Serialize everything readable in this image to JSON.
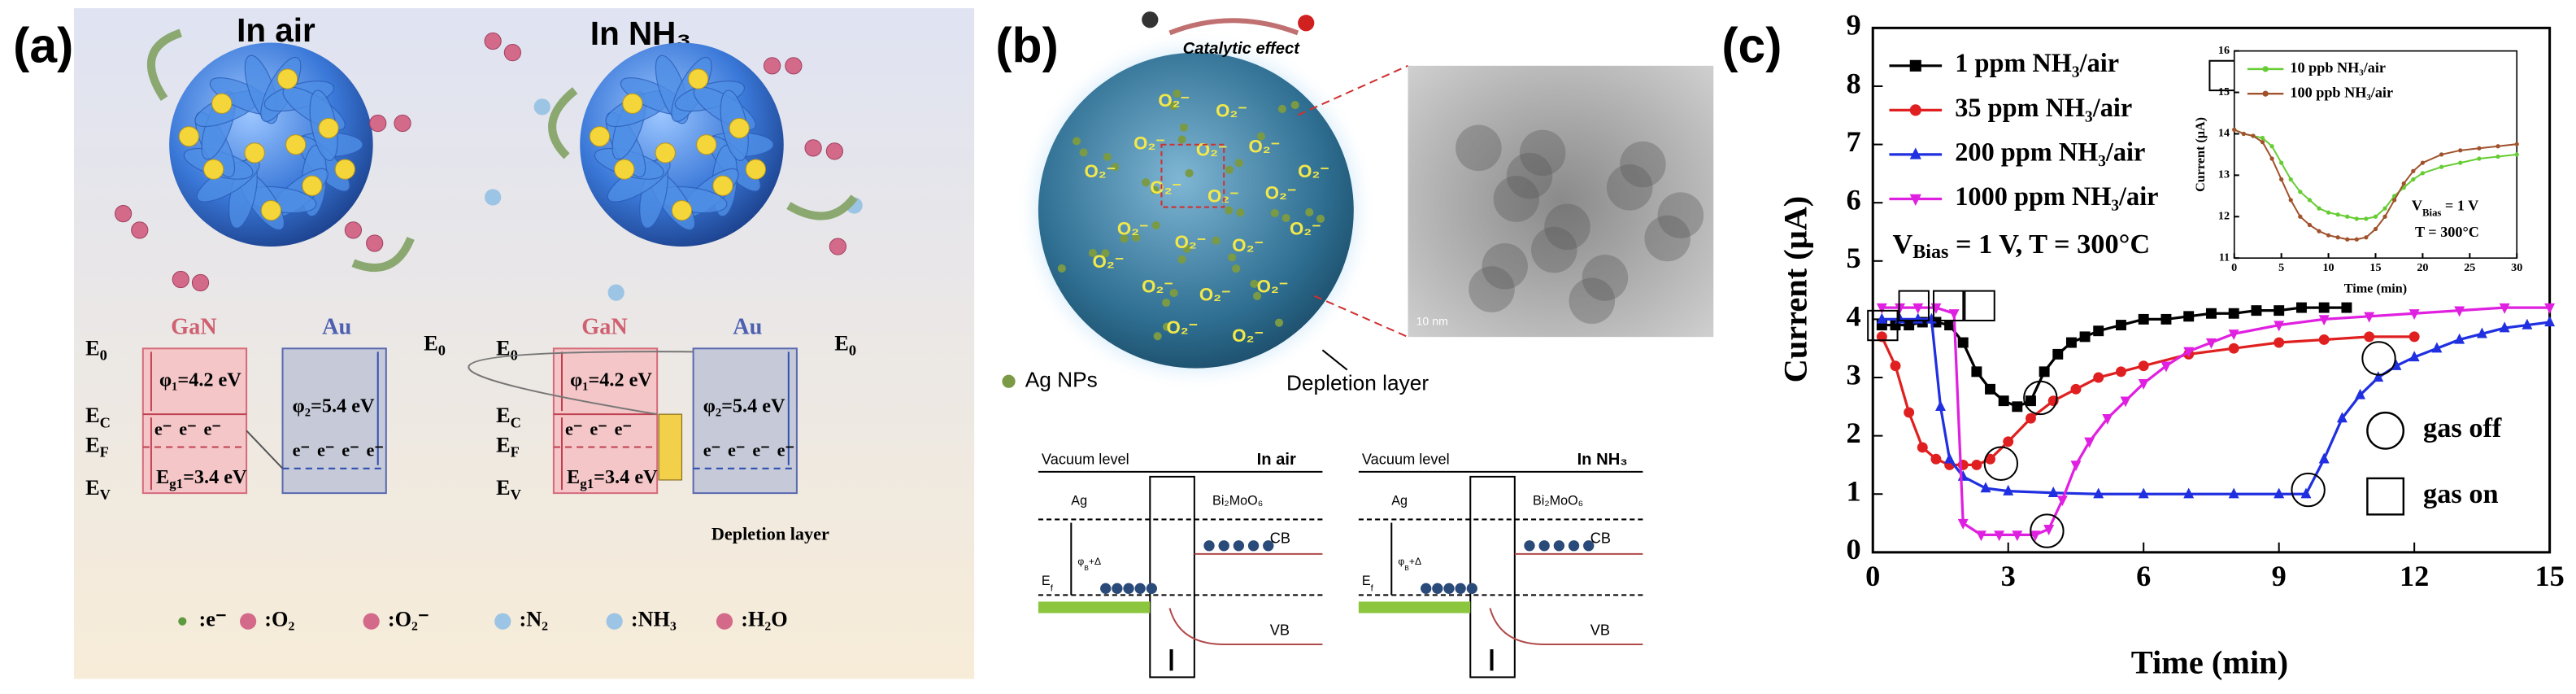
{
  "panel_a": {
    "label": "(a)",
    "left_title": "In air",
    "right_title": "In NH₃",
    "gan": "GaN",
    "au": "Au",
    "e0": {
      "main": "E",
      "sub": "0"
    },
    "ec": {
      "main": "E",
      "sub": "C"
    },
    "ef": {
      "main": "E",
      "sub": "F"
    },
    "ev": {
      "main": "E",
      "sub": "V"
    },
    "phi1": "φ₁=4.2 eV",
    "phi2": "φ₂=5.4 eV",
    "eg": {
      "main": "E",
      "sub": "g1",
      "rest": "=3.4 eV"
    },
    "electron": "e⁻",
    "depletion": "Depletion layer",
    "legend": [
      ":e⁻",
      ":O₂",
      ":O₂⁻",
      ":N₂",
      ":NH₃",
      ":H₂O"
    ]
  },
  "panel_b": {
    "label": "(b)",
    "catalytic": "Catalytic effect",
    "o2": "O₂⁻",
    "scale": "10 nm",
    "ag_nps": "Ag NPs",
    "depletion": "Depletion layer",
    "vacuum": "Vacuum level",
    "left_title": "In air",
    "right_title": "In NH₃",
    "ag": "Ag",
    "bmo": "Bi₂MoO₆",
    "cb": "CB",
    "vb": "VB",
    "ef": {
      "main": "E",
      "sub": "f"
    },
    "barrier": {
      "main": "φ",
      "sub": "B",
      "rest": "+Δ"
    }
  },
  "panel_c": {
    "label": "(c)",
    "gas_off": "gas off",
    "gas_on": "gas on"
  },
  "chart_data": [
    {
      "type": "line",
      "x_label": "Time (min)",
      "y_label": "Current (μA)",
      "annotation": {
        "main": "V",
        "sub": "Bias",
        "rest": " = 1 V,  T = 300°C"
      },
      "xlim": [
        0,
        15
      ],
      "ylim": [
        0,
        9
      ],
      "xticks": [
        0,
        3,
        6,
        9,
        12,
        15
      ],
      "yticks": [
        0,
        1,
        2,
        3,
        4,
        5,
        6,
        7,
        8,
        9
      ],
      "series": [
        {
          "name": "1 ppm NH₃/air",
          "color": "#000000",
          "marker": "square",
          "x": [
            0.2,
            0.5,
            0.8,
            1.1,
            1.4,
            1.7,
            2.0,
            2.3,
            2.6,
            2.9,
            3.2,
            3.5,
            3.8,
            4.1,
            4.4,
            4.7,
            5.0,
            5.5,
            6.0,
            6.5,
            7.0,
            7.5,
            8.0,
            8.5,
            9.0,
            9.5,
            10.0,
            10.5
          ],
          "values": [
            3.9,
            3.9,
            3.9,
            3.95,
            3.95,
            3.9,
            3.6,
            3.1,
            2.8,
            2.6,
            2.5,
            2.6,
            3.1,
            3.4,
            3.6,
            3.7,
            3.8,
            3.9,
            4.0,
            4.0,
            4.05,
            4.1,
            4.1,
            4.15,
            4.15,
            4.2,
            4.2,
            4.2
          ]
        },
        {
          "name": "35 ppm NH₃/air",
          "color": "#e02020",
          "marker": "circle",
          "x": [
            0.2,
            0.5,
            0.8,
            1.1,
            1.4,
            1.7,
            2.0,
            2.3,
            2.6,
            3.0,
            3.5,
            4.0,
            4.5,
            5.0,
            5.5,
            6.0,
            7.0,
            8.0,
            9.0,
            10.0,
            11.0,
            12.0
          ],
          "values": [
            3.7,
            3.2,
            2.4,
            1.8,
            1.6,
            1.5,
            1.5,
            1.5,
            1.6,
            1.9,
            2.3,
            2.6,
            2.8,
            3.0,
            3.1,
            3.2,
            3.4,
            3.5,
            3.6,
            3.65,
            3.7,
            3.7
          ]
        },
        {
          "name": "200 ppm NH₃/air",
          "color": "#2030e0",
          "marker": "triangle-up",
          "x": [
            0.2,
            0.6,
            1.0,
            1.3,
            1.5,
            1.7,
            2.0,
            2.5,
            3.0,
            4,
            5,
            6,
            7,
            8,
            9,
            9.6,
            10.0,
            10.4,
            10.8,
            11.2,
            11.6,
            12,
            12.5,
            13,
            13.5,
            14,
            14.5,
            15
          ],
          "values": [
            4.0,
            4.0,
            4.0,
            4.0,
            2.5,
            1.6,
            1.3,
            1.1,
            1.05,
            1.02,
            1.0,
            1.0,
            1.0,
            1.0,
            1.0,
            1.0,
            1.6,
            2.3,
            2.7,
            3.0,
            3.2,
            3.35,
            3.5,
            3.65,
            3.75,
            3.85,
            3.9,
            3.95
          ]
        },
        {
          "name": "1000 ppm NH₃/air",
          "color": "#e020e0",
          "marker": "triangle-down",
          "x": [
            0.2,
            0.6,
            1.0,
            1.4,
            1.8,
            2.0,
            2.4,
            2.8,
            3.2,
            3.6,
            3.9,
            4.2,
            4.5,
            4.8,
            5.2,
            5.6,
            6.0,
            6.5,
            7,
            7.5,
            8,
            9,
            10,
            11,
            12,
            13,
            14,
            15
          ],
          "values": [
            4.2,
            4.2,
            4.2,
            4.2,
            4.1,
            0.5,
            0.3,
            0.3,
            0.3,
            0.3,
            0.4,
            0.9,
            1.5,
            1.9,
            2.3,
            2.6,
            2.9,
            3.2,
            3.45,
            3.6,
            3.75,
            3.9,
            4.0,
            4.05,
            4.1,
            4.15,
            4.2,
            4.2
          ]
        }
      ]
    },
    {
      "type": "line",
      "x_label": "Time (min)",
      "y_label": "Current (μA)",
      "annotation": {
        "main": "V",
        "sub": "Bias",
        "rest": " = 1 V"
      },
      "annotation2": "T = 300°C",
      "xlim": [
        0,
        30
      ],
      "ylim": [
        11,
        16
      ],
      "xticks": [
        0,
        5,
        10,
        15,
        20,
        25,
        30
      ],
      "yticks": [
        11,
        12,
        13,
        14,
        15,
        16
      ],
      "series": [
        {
          "name": "10 ppb NH₃/air",
          "color": "#66cc33",
          "marker": "circle",
          "x": [
            0,
            1,
            2,
            3,
            4,
            5,
            6,
            7,
            8,
            9,
            10,
            11,
            12,
            13,
            14,
            15,
            16,
            17,
            18,
            19,
            20,
            22,
            24,
            26,
            28,
            30
          ],
          "values": [
            14.1,
            14.0,
            13.95,
            13.9,
            13.7,
            13.3,
            12.9,
            12.6,
            12.4,
            12.2,
            12.1,
            12.05,
            12.0,
            11.95,
            11.95,
            12.0,
            12.2,
            12.5,
            12.7,
            12.9,
            13.05,
            13.2,
            13.3,
            13.4,
            13.45,
            13.5
          ]
        },
        {
          "name": "100 ppb NH₃/air",
          "color": "#a0522d",
          "marker": "circle",
          "x": [
            0,
            1,
            2,
            3,
            4,
            5,
            6,
            7,
            8,
            9,
            10,
            11,
            12,
            13,
            14,
            15,
            16,
            17,
            18,
            19,
            20,
            22,
            24,
            26,
            28,
            30
          ],
          "values": [
            14.1,
            14.0,
            13.95,
            13.8,
            13.4,
            12.9,
            12.4,
            12.0,
            11.8,
            11.65,
            11.55,
            11.5,
            11.45,
            11.45,
            11.5,
            11.7,
            12.0,
            12.4,
            12.8,
            13.1,
            13.3,
            13.5,
            13.6,
            13.65,
            13.7,
            13.75
          ]
        }
      ]
    }
  ]
}
